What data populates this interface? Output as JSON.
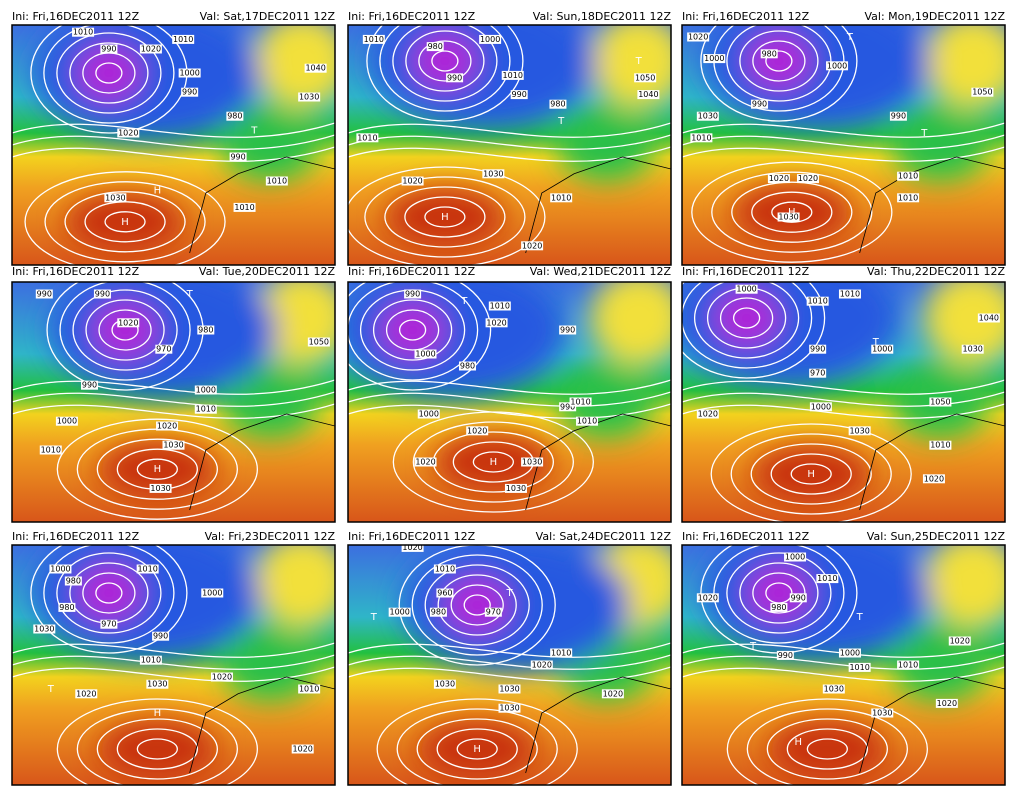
{
  "panels": [
    {
      "ini": "Ini: Fri,16DEC2011 12Z",
      "val": "Val: Sat,17DEC2011 12Z",
      "labels": [
        "1010",
        "990",
        "1020",
        "1010",
        "1000",
        "990",
        "980",
        "990",
        "1040",
        "1030",
        "1020",
        "1030",
        "1010",
        "1010",
        "H",
        "H",
        "T"
      ]
    },
    {
      "ini": "Ini: Fri,16DEC2011 12Z",
      "val": "Val: Sun,18DEC2011 12Z",
      "labels": [
        "1010",
        "980",
        "990",
        "1000",
        "1010",
        "990",
        "980",
        "1050",
        "1040",
        "1010",
        "1020",
        "1030",
        "1010",
        "1020",
        "H",
        "T",
        "T"
      ]
    },
    {
      "ini": "Ini: Fri,16DEC2011 12Z",
      "val": "Val: Mon,19DEC2011 12Z",
      "labels": [
        "1020",
        "1000",
        "980",
        "990",
        "1000",
        "1030",
        "1010",
        "1020",
        "1020",
        "1030",
        "990",
        "1050",
        "1010",
        "1010",
        "H",
        "T",
        "T"
      ]
    },
    {
      "ini": "Ini: Fri,16DEC2011 12Z",
      "val": "Val: Tue,20DEC2011 12Z",
      "labels": [
        "990",
        "990",
        "1020",
        "970",
        "990",
        "980",
        "1000",
        "1010",
        "1000",
        "1010",
        "1020",
        "1030",
        "1030",
        "1050",
        "H",
        "T"
      ]
    },
    {
      "ini": "Ini: Fri,16DEC2011 12Z",
      "val": "Val: Wed,21DEC2011 12Z",
      "labels": [
        "990",
        "1010",
        "1020",
        "990",
        "980",
        "1000",
        "990",
        "1000",
        "1010",
        "1010",
        "1020",
        "1030",
        "1020",
        "1030",
        "H",
        "T"
      ]
    },
    {
      "ini": "Ini: Fri,16DEC2011 12Z",
      "val": "Val: Thu,22DEC2011 12Z",
      "labels": [
        "1000",
        "1010",
        "1010",
        "990",
        "970",
        "1000",
        "1040",
        "1030",
        "1000",
        "1020",
        "1050",
        "1020",
        "1030",
        "1010",
        "H",
        "T"
      ]
    },
    {
      "ini": "Ini: Fri,16DEC2011 12Z",
      "val": "Val: Fri,23DEC2011 12Z",
      "labels": [
        "1000",
        "980",
        "1010",
        "980",
        "970",
        "990",
        "1000",
        "1030",
        "1010",
        "1020",
        "1030",
        "1020",
        "1010",
        "1020",
        "H",
        "T"
      ]
    },
    {
      "ini": "Ini: Fri,16DEC2011 12Z",
      "val": "Val: Sat,24DEC2011 12Z",
      "labels": [
        "1020",
        "960",
        "980",
        "970",
        "1010",
        "1000",
        "1030",
        "1030",
        "1020",
        "1010",
        "1030",
        "1020",
        "H",
        "T",
        "T"
      ]
    },
    {
      "ini": "Ini: Fri,16DEC2011 12Z",
      "val": "Val: Sun,25DEC2011 12Z",
      "labels": [
        "1000",
        "1010",
        "990",
        "980",
        "990",
        "1000",
        "1010",
        "1020",
        "1020",
        "1030",
        "1020",
        "1030",
        "1010",
        "H",
        "T",
        "T"
      ]
    }
  ]
}
